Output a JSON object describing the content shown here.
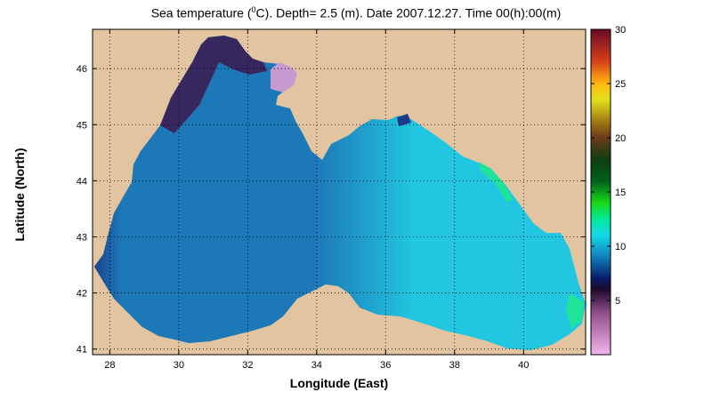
{
  "title": {
    "prefix": "Sea temperature (",
    "sup": "0",
    "suffix": "C). Depth=  2.5 (m). Date 2007.12.27. Time 00(h):00(m)"
  },
  "chart_data": {
    "type": "heatmap",
    "xlabel": "Longitude (East)",
    "ylabel": "Latitude (North)",
    "xlim": [
      27.5,
      41.8
    ],
    "ylim": [
      40.9,
      46.7
    ],
    "xticks": [
      28,
      30,
      32,
      34,
      36,
      38,
      40
    ],
    "yticks": [
      41,
      42,
      43,
      44,
      45,
      46
    ],
    "grid": true,
    "colorbar": {
      "range": [
        0,
        30
      ],
      "ticks": [
        5,
        10,
        15,
        20,
        25,
        30
      ]
    },
    "land_color": "#e3c4a0",
    "colormap_stops": [
      {
        "v": 0,
        "c": "#f2b6ee"
      },
      {
        "v": 4,
        "c": "#8a4a86"
      },
      {
        "v": 6,
        "c": "#1d0a2a"
      },
      {
        "v": 7,
        "c": "#0a1a6a"
      },
      {
        "v": 9,
        "c": "#0f7fb8"
      },
      {
        "v": 11,
        "c": "#15d8ea"
      },
      {
        "v": 12.5,
        "c": "#00e89a"
      },
      {
        "v": 14,
        "c": "#18d818"
      },
      {
        "v": 16,
        "c": "#00601c"
      },
      {
        "v": 18,
        "c": "#0f3e10"
      },
      {
        "v": 20,
        "c": "#6a3a1a"
      },
      {
        "v": 21.5,
        "c": "#a07a12"
      },
      {
        "v": 23.5,
        "c": "#e2e01a"
      },
      {
        "v": 25,
        "c": "#ffb810"
      },
      {
        "v": 27,
        "c": "#d84018"
      },
      {
        "v": 30,
        "c": "#6a0a28"
      }
    ],
    "water_colors": {
      "north_shelf": "#3a1f55",
      "danube_coast": "#1a3a8a",
      "western_basin": "#1d78b8",
      "eastern_basin": "#22c6e0",
      "kerch_plume": "#c79bd2",
      "georgian_coast": "#1ee49a"
    }
  }
}
